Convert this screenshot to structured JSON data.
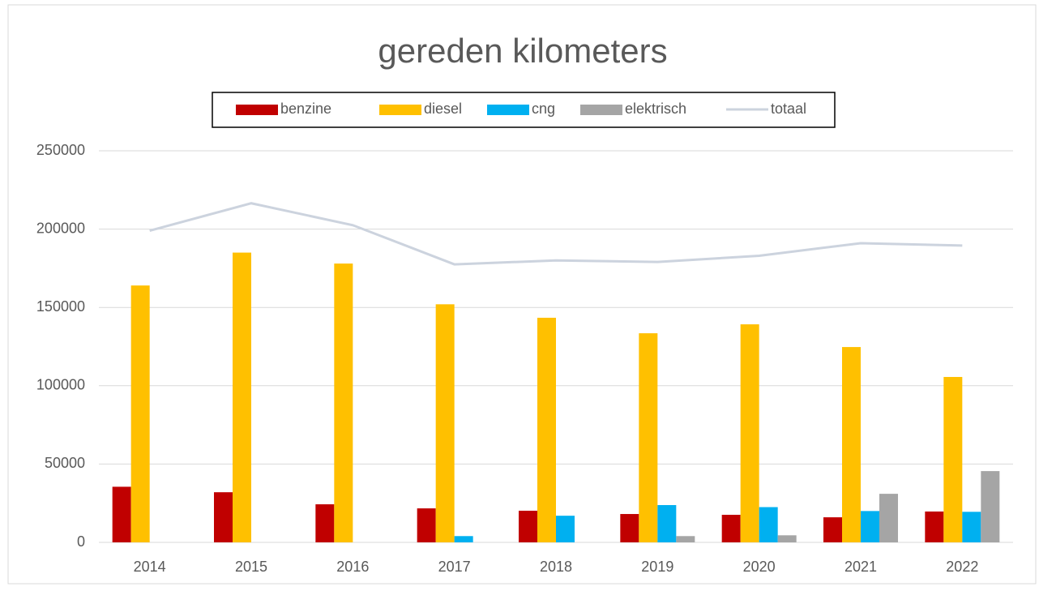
{
  "chart_data": {
    "type": "bar",
    "title": "gereden kilometers",
    "categories": [
      "2014",
      "2015",
      "2016",
      "2017",
      "2018",
      "2019",
      "2020",
      "2021",
      "2022"
    ],
    "series": [
      {
        "name": "benzine",
        "color": "#c00000",
        "values": [
          35500,
          32000,
          24300,
          21700,
          20200,
          18100,
          17600,
          16000,
          19700
        ]
      },
      {
        "name": "diesel",
        "color": "#ffc000",
        "values": [
          164000,
          185000,
          178000,
          152000,
          143400,
          133500,
          139200,
          124700,
          105600
        ]
      },
      {
        "name": "cng",
        "color": "#00b0f0",
        "values": [
          0,
          0,
          0,
          4000,
          17000,
          23800,
          22500,
          20000,
          19500
        ]
      },
      {
        "name": "elektrisch",
        "color": "#a5a5a5",
        "values": [
          0,
          0,
          0,
          0,
          0,
          4000,
          4500,
          31000,
          45500
        ]
      },
      {
        "name": "totaal",
        "type": "line",
        "color": "#ccd3de",
        "values": [
          199000,
          216500,
          202500,
          177500,
          180000,
          179000,
          183000,
          191000,
          189500
        ]
      }
    ],
    "ylim": [
      0,
      250000
    ],
    "yticks": [
      0,
      50000,
      100000,
      150000,
      200000,
      250000
    ],
    "grid": true,
    "legend": "top"
  }
}
